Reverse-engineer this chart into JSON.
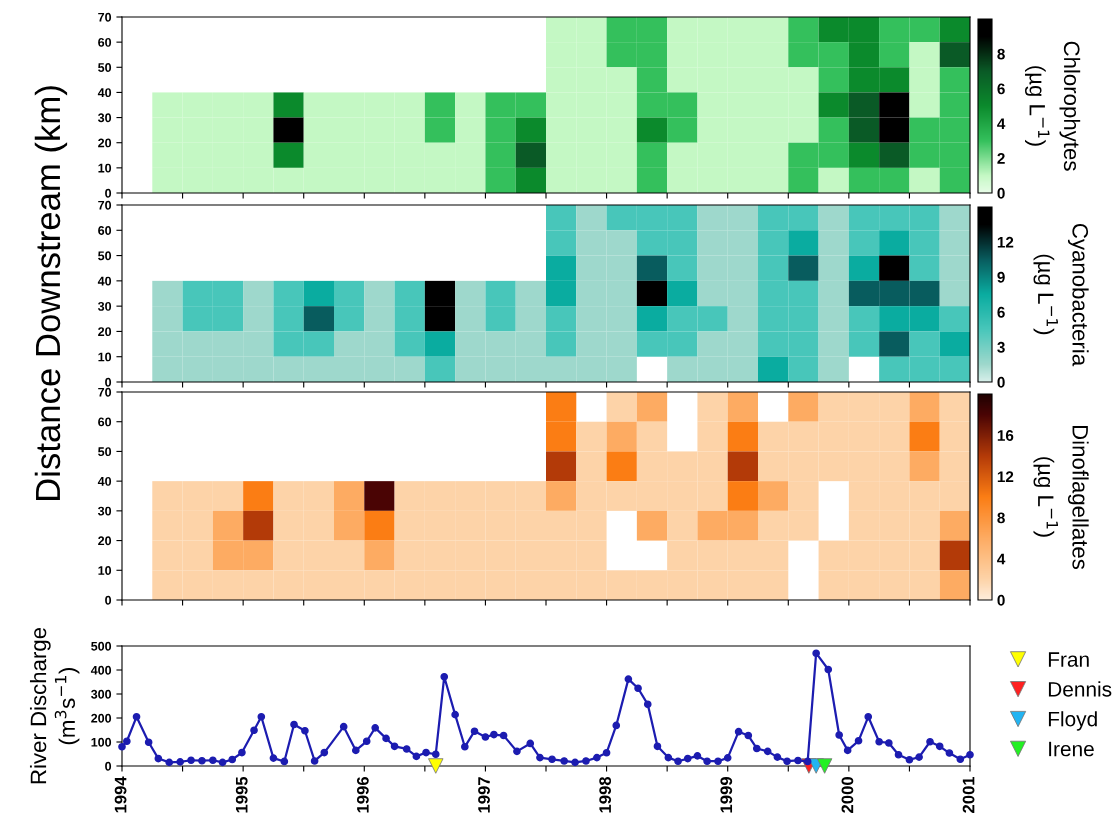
{
  "chart_data": [
    {
      "type": "heatmap",
      "clabel": "Chlorophytes\n(µg L$^{−1}$)",
      "x": [
        1994.125,
        1994.375,
        1994.625,
        1994.875,
        1995.125,
        1995.375,
        1995.625,
        1995.875,
        1996.125,
        1996.375,
        1996.625,
        1996.875,
        1997.125,
        1997.375,
        1997.625,
        1997.875,
        1998.125,
        1998.375,
        1998.625,
        1998.875,
        1999.125,
        1999.375,
        1999.625,
        1999.875,
        2000.125,
        2000.375,
        2000.625,
        2000.875
      ],
      "y": [
        65,
        55,
        45,
        35,
        25,
        15,
        5
      ],
      "cells": [
        [
          null,
          null,
          null,
          null,
          null,
          null,
          null,
          null,
          null,
          null,
          null,
          null,
          null,
          null,
          1,
          1,
          3,
          3,
          1,
          1,
          1,
          1,
          3,
          5,
          5,
          3,
          3,
          5
        ],
        [
          null,
          null,
          null,
          null,
          null,
          null,
          null,
          null,
          null,
          null,
          null,
          null,
          null,
          null,
          1,
          1,
          3,
          3,
          1,
          1,
          1,
          1,
          3,
          3,
          5,
          3,
          1,
          7
        ],
        [
          null,
          null,
          null,
          null,
          null,
          null,
          null,
          null,
          null,
          null,
          null,
          null,
          null,
          null,
          1,
          1,
          1,
          3,
          1,
          1,
          1,
          1,
          1,
          3,
          5,
          5,
          1,
          3
        ],
        [
          null,
          1,
          1,
          1,
          1,
          5,
          1,
          1,
          1,
          1,
          3,
          1,
          3,
          3,
          1,
          1,
          1,
          3,
          3,
          1,
          1,
          1,
          1,
          5,
          7,
          9,
          1,
          3
        ],
        [
          null,
          1,
          1,
          1,
          1,
          9,
          1,
          1,
          1,
          1,
          3,
          1,
          3,
          5,
          1,
          1,
          1,
          5,
          3,
          1,
          1,
          1,
          1,
          3,
          7,
          9,
          3,
          3
        ],
        [
          null,
          1,
          1,
          1,
          1,
          5,
          1,
          1,
          1,
          1,
          1,
          1,
          3,
          7,
          1,
          1,
          1,
          3,
          1,
          1,
          1,
          1,
          3,
          3,
          5,
          7,
          3,
          3
        ],
        [
          null,
          1,
          1,
          1,
          1,
          1,
          1,
          1,
          1,
          1,
          1,
          1,
          3,
          5,
          1,
          1,
          1,
          3,
          1,
          1,
          1,
          1,
          3,
          1,
          3,
          3,
          1,
          3
        ]
      ],
      "colors": [
        "#c4f8c4",
        "#34c05c",
        "#0b8a2c",
        "#0a5a26",
        "#000000"
      ],
      "clim": [
        0,
        10
      ],
      "cticks": [
        0,
        2,
        4,
        6,
        8
      ],
      "xlim": [
        1994,
        2001
      ],
      "ylim": [
        0,
        70
      ],
      "yticks": [
        0,
        10,
        20,
        30,
        40,
        50,
        60,
        70
      ],
      "xticks": [
        {
          "value": 1994,
          "label": null
        },
        {
          "value": 1994.5,
          "label": null
        },
        {
          "value": 1995,
          "label": null
        },
        {
          "value": 1995.5,
          "label": null
        },
        {
          "value": 1996,
          "label": null
        },
        {
          "value": 1996.5,
          "label": null
        },
        {
          "value": 1997,
          "label": null
        },
        {
          "value": 1997.5,
          "label": null
        },
        {
          "value": 1998,
          "label": null
        },
        {
          "value": 1998.5,
          "label": null
        },
        {
          "value": 1999,
          "label": null
        },
        {
          "value": 1999.5,
          "label": null
        },
        {
          "value": 2000,
          "label": null
        },
        {
          "value": 2000.5,
          "label": null
        },
        {
          "value": 2001,
          "label": null
        }
      ],
      "tick_labels": "y"
    },
    {
      "type": "heatmap",
      "clabel": "Cyanobacteria\n(µg L$^{−1}$)",
      "ylabel": "Distance Downstream (km)",
      "x": [
        1994.125,
        1994.375,
        1994.625,
        1994.875,
        1995.125,
        1995.375,
        1995.625,
        1995.875,
        1996.125,
        1996.375,
        1996.625,
        1996.875,
        1997.125,
        1997.375,
        1997.625,
        1997.875,
        1998.125,
        1998.375,
        1998.625,
        1998.875,
        1999.125,
        1999.375,
        1999.625,
        1999.875,
        2000.125,
        2000.375,
        2000.625,
        2000.875
      ],
      "y": [
        65,
        55,
        45,
        35,
        25,
        15,
        5
      ],
      "cells": [
        [
          null,
          null,
          null,
          null,
          null,
          null,
          null,
          null,
          null,
          null,
          null,
          null,
          null,
          null,
          4.5,
          1.5,
          4.5,
          4.5,
          4.5,
          1.5,
          1.5,
          4.5,
          4.5,
          1.5,
          4.5,
          4.5,
          4.5,
          1.5
        ],
        [
          null,
          null,
          null,
          null,
          null,
          null,
          null,
          null,
          null,
          null,
          null,
          null,
          null,
          null,
          4.5,
          1.5,
          1.5,
          4.5,
          4.5,
          1.5,
          1.5,
          4.5,
          7.5,
          1.5,
          4.5,
          7.5,
          4.5,
          1.5
        ],
        [
          null,
          null,
          null,
          null,
          null,
          null,
          null,
          null,
          null,
          null,
          null,
          null,
          null,
          null,
          7.5,
          1.5,
          1.5,
          10.5,
          4.5,
          1.5,
          1.5,
          4.5,
          10.5,
          1.5,
          7.5,
          13.5,
          4.5,
          1.5
        ],
        [
          null,
          1.5,
          4.5,
          4.5,
          1.5,
          4.5,
          7.5,
          4.5,
          1.5,
          4.5,
          13.5,
          1.5,
          4.5,
          1.5,
          7.5,
          1.5,
          1.5,
          13.5,
          7.5,
          1.5,
          1.5,
          4.5,
          4.5,
          1.5,
          10.5,
          10.5,
          10.5,
          1.5
        ],
        [
          null,
          1.5,
          4.5,
          4.5,
          1.5,
          4.5,
          10.5,
          4.5,
          1.5,
          4.5,
          13.5,
          1.5,
          4.5,
          1.5,
          4.5,
          1.5,
          1.5,
          7.5,
          4.5,
          4.5,
          1.5,
          4.5,
          4.5,
          1.5,
          4.5,
          7.5,
          7.5,
          4.5
        ],
        [
          null,
          1.5,
          1.5,
          1.5,
          1.5,
          4.5,
          4.5,
          1.5,
          1.5,
          4.5,
          7.5,
          1.5,
          1.5,
          1.5,
          4.5,
          1.5,
          1.5,
          4.5,
          4.5,
          1.5,
          1.5,
          4.5,
          4.5,
          1.5,
          4.5,
          10.5,
          4.5,
          7.5
        ],
        [
          null,
          1.5,
          1.5,
          1.5,
          1.5,
          1.5,
          1.5,
          1.5,
          1.5,
          1.5,
          4.5,
          1.5,
          1.5,
          1.5,
          1.5,
          1.5,
          1.5,
          null,
          1.5,
          1.5,
          1.5,
          7.5,
          4.5,
          1.5,
          null,
          4.5,
          4.5,
          4.5
        ]
      ],
      "colors": [
        "#9ed8cc",
        "#48c6ba",
        "#0aaca0",
        "#085c5e",
        "#000000"
      ],
      "clim": [
        0,
        15
      ],
      "cticks": [
        0,
        3,
        6,
        9,
        12
      ],
      "xlim": [
        1994,
        2001
      ],
      "ylim": [
        0,
        70
      ],
      "yticks": [
        0,
        10,
        20,
        30,
        40,
        50,
        60,
        70
      ],
      "xticks": [
        {
          "value": 1994,
          "label": null
        },
        {
          "value": 1994.5,
          "label": null
        },
        {
          "value": 1995,
          "label": null
        },
        {
          "value": 1995.5,
          "label": null
        },
        {
          "value": 1996,
          "label": null
        },
        {
          "value": 1996.5,
          "label": null
        },
        {
          "value": 1997,
          "label": null
        },
        {
          "value": 1997.5,
          "label": null
        },
        {
          "value": 1998,
          "label": null
        },
        {
          "value": 1998.5,
          "label": null
        },
        {
          "value": 1999,
          "label": null
        },
        {
          "value": 1999.5,
          "label": null
        },
        {
          "value": 2000,
          "label": null
        },
        {
          "value": 2000.5,
          "label": null
        },
        {
          "value": 2001,
          "label": null
        }
      ],
      "tick_labels": "y"
    },
    {
      "type": "heatmap",
      "clabel": "Dinoflagellates\n(µg L$^{−1}$)",
      "x": [
        1994.125,
        1994.375,
        1994.625,
        1994.875,
        1995.125,
        1995.375,
        1995.625,
        1995.875,
        1996.125,
        1996.375,
        1996.625,
        1996.875,
        1997.125,
        1997.375,
        1997.625,
        1997.875,
        1998.125,
        1998.375,
        1998.625,
        1998.875,
        1999.125,
        1999.375,
        1999.625,
        1999.875,
        2000.125,
        2000.375,
        2000.625,
        2000.875
      ],
      "y": [
        65,
        55,
        45,
        35,
        25,
        15,
        5
      ],
      "cells": [
        [
          null,
          null,
          null,
          null,
          null,
          null,
          null,
          null,
          null,
          null,
          null,
          null,
          null,
          null,
          10,
          null,
          2,
          6,
          null,
          2,
          6,
          null,
          6,
          2,
          2,
          2,
          6,
          2
        ],
        [
          null,
          null,
          null,
          null,
          null,
          null,
          null,
          null,
          null,
          null,
          null,
          null,
          null,
          null,
          10,
          2,
          6,
          2,
          null,
          2,
          10,
          2,
          2,
          2,
          2,
          2,
          10,
          2
        ],
        [
          null,
          null,
          null,
          null,
          null,
          null,
          null,
          null,
          null,
          null,
          null,
          null,
          null,
          null,
          14,
          2,
          10,
          2,
          2,
          2,
          14,
          2,
          2,
          2,
          2,
          2,
          6,
          2
        ],
        [
          null,
          2,
          2,
          2,
          10,
          2,
          2,
          6,
          18,
          2,
          2,
          2,
          2,
          2,
          6,
          2,
          2,
          2,
          2,
          2,
          10,
          6,
          2,
          null,
          2,
          2,
          2,
          2
        ],
        [
          null,
          2,
          2,
          6,
          14,
          2,
          2,
          6,
          10,
          2,
          2,
          2,
          2,
          2,
          2,
          2,
          null,
          6,
          2,
          6,
          6,
          2,
          2,
          null,
          2,
          2,
          2,
          6
        ],
        [
          null,
          2,
          2,
          6,
          6,
          2,
          2,
          2,
          6,
          2,
          2,
          2,
          2,
          2,
          2,
          2,
          null,
          null,
          2,
          2,
          2,
          2,
          null,
          2,
          2,
          2,
          2,
          14
        ],
        [
          null,
          2,
          2,
          2,
          2,
          2,
          2,
          2,
          2,
          2,
          2,
          2,
          2,
          2,
          2,
          2,
          2,
          2,
          2,
          2,
          2,
          2,
          null,
          2,
          2,
          2,
          2,
          6
        ]
      ],
      "colors": [
        "#fdd3a8",
        "#fdab62",
        "#fb7d14",
        "#b33a08",
        "#4a0404"
      ],
      "clim": [
        0,
        20
      ],
      "cticks": [
        0,
        4,
        8,
        12,
        16
      ],
      "xlim": [
        1994,
        2001
      ],
      "ylim": [
        0,
        70
      ],
      "yticks": [
        0,
        10,
        20,
        30,
        40,
        50,
        60,
        70
      ],
      "xticks": [
        {
          "value": 1994,
          "label": null
        },
        {
          "value": 1994.5,
          "label": null
        },
        {
          "value": 1995,
          "label": null
        },
        {
          "value": 1995.5,
          "label": null
        },
        {
          "value": 1996,
          "label": null
        },
        {
          "value": 1996.5,
          "label": null
        },
        {
          "value": 1997,
          "label": null
        },
        {
          "value": 1997.5,
          "label": null
        },
        {
          "value": 1998,
          "label": null
        },
        {
          "value": 1998.5,
          "label": null
        },
        {
          "value": 1999,
          "label": null
        },
        {
          "value": 1999.5,
          "label": null
        },
        {
          "value": 2000,
          "label": null
        },
        {
          "value": 2000.5,
          "label": null
        },
        {
          "value": 2001,
          "label": null
        }
      ],
      "tick_labels": "y"
    },
    {
      "type": "line",
      "ylabel": "River Discharge\n(m$^{3}$s$^{−1}$)",
      "legend": "right",
      "grid": false,
      "series": [
        {
          "type": "line",
          "color": "#1c1cb0",
          "marker": "circle",
          "x": [
            1994.0,
            1994.04,
            1994.12,
            1994.22,
            1994.3,
            1994.39,
            1994.48,
            1994.57,
            1994.66,
            1994.75,
            1994.83,
            1994.91,
            1994.99,
            1995.09,
            1995.15,
            1995.25,
            1995.34,
            1995.42,
            1995.51,
            1995.59,
            1995.67,
            1995.83,
            1995.93,
            1996.02,
            1996.09,
            1996.18,
            1996.25,
            1996.35,
            1996.43,
            1996.51,
            1996.59,
            1996.66,
            1996.75,
            1996.83,
            1996.91,
            1997.0,
            1997.07,
            1997.15,
            1997.26,
            1997.37,
            1997.45,
            1997.55,
            1997.65,
            1997.74,
            1997.83,
            1997.92,
            1998.0,
            1998.08,
            1998.18,
            1998.26,
            1998.34,
            1998.42,
            1998.51,
            1998.59,
            1998.67,
            1998.75,
            1998.83,
            1998.92,
            1999.0,
            1999.09,
            1999.17,
            1999.24,
            1999.33,
            1999.41,
            1999.49,
            1999.58,
            1999.66,
            1999.73,
            1999.83,
            1999.92,
            1999.99,
            2000.08,
            2000.16,
            2000.25,
            2000.33,
            2000.41,
            2000.5,
            2000.58,
            2000.67,
            2000.75,
            2000.83,
            2000.92,
            2001.0
          ],
          "values": [
            80,
            103,
            205,
            99,
            31,
            15,
            17,
            24,
            22,
            24,
            15,
            27,
            56,
            149,
            205,
            33,
            19,
            173,
            147,
            21,
            56,
            164,
            65,
            103,
            159,
            115,
            82,
            71,
            40,
            56,
            49,
            372,
            214,
            80,
            145,
            121,
            131,
            127,
            61,
            94,
            35,
            28,
            21,
            15,
            21,
            35,
            55,
            169,
            362,
            324,
            257,
            82,
            35,
            20,
            31,
            42,
            20,
            20,
            34,
            143,
            127,
            73,
            61,
            37,
            20,
            23,
            19,
            470,
            402,
            129,
            65,
            105,
            205,
            101,
            96,
            47,
            26,
            37,
            101,
            82,
            54,
            28,
            47
          ]
        },
        {
          "type": "scatter",
          "name": "Fran",
          "color": "#ffff00",
          "marker": "triangle",
          "x": [
            1996.59
          ],
          "values": [
            0
          ]
        },
        {
          "type": "scatter",
          "name": "Dennis",
          "color": "#ff2020",
          "marker": "triangle",
          "x": [
            1999.67
          ],
          "values": [
            0
          ]
        },
        {
          "type": "scatter",
          "name": "Floyd",
          "color": "#22b4f2",
          "marker": "triangle",
          "x": [
            1999.73
          ],
          "values": [
            0
          ]
        },
        {
          "type": "scatter",
          "name": "Irene",
          "color": "#22f022",
          "marker": "triangle",
          "x": [
            1999.8
          ],
          "values": [
            0
          ]
        }
      ],
      "xlim": [
        1994,
        2001
      ],
      "ylim": [
        0,
        500
      ],
      "yticks": [
        0,
        100,
        200,
        300,
        400,
        500
      ],
      "xticks": [
        1994,
        {
          "value": 1994.5,
          "label": null
        },
        1995,
        {
          "value": 1995.5,
          "label": null
        },
        1996,
        {
          "value": 1996.5,
          "label": null
        },
        1997,
        {
          "value": 1997.5,
          "label": null
        },
        1998,
        {
          "value": 1998.5,
          "label": null
        },
        1999,
        {
          "value": 1999.5,
          "label": null
        },
        2000,
        {
          "value": 2000.5,
          "label": null
        },
        2001
      ]
    }
  ]
}
